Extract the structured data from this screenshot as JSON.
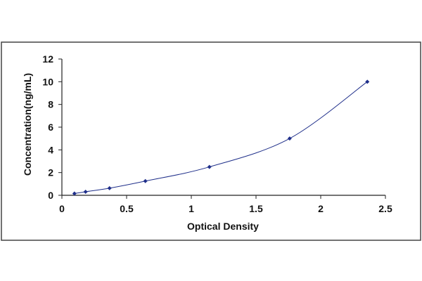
{
  "chart_data": {
    "type": "scatter",
    "title": "",
    "xlabel": "Optical Density",
    "ylabel": "Concentration(ng/mL)",
    "xlim": [
      0,
      2.5
    ],
    "ylim": [
      0,
      12
    ],
    "xticks": [
      0,
      0.5,
      1,
      1.5,
      2,
      2.5
    ],
    "xtick_labels": [
      "0",
      "0.5",
      "1",
      "1.5",
      "2",
      "2.5"
    ],
    "yticks": [
      0,
      2,
      4,
      6,
      8,
      10,
      12
    ],
    "ytick_labels": [
      "0",
      "2",
      "4",
      "6",
      "8",
      "10",
      "12"
    ],
    "grid": false,
    "legend": false,
    "series": [
      {
        "x": [
          0.097,
          0.183,
          0.368,
          0.645,
          1.14,
          1.76,
          2.36
        ],
        "y": [
          0.156,
          0.312,
          0.625,
          1.25,
          2.5,
          5,
          10
        ],
        "marker_color": "#1f2f8a",
        "fit_curve": true,
        "curve_color": "#1f2f8a"
      }
    ]
  }
}
